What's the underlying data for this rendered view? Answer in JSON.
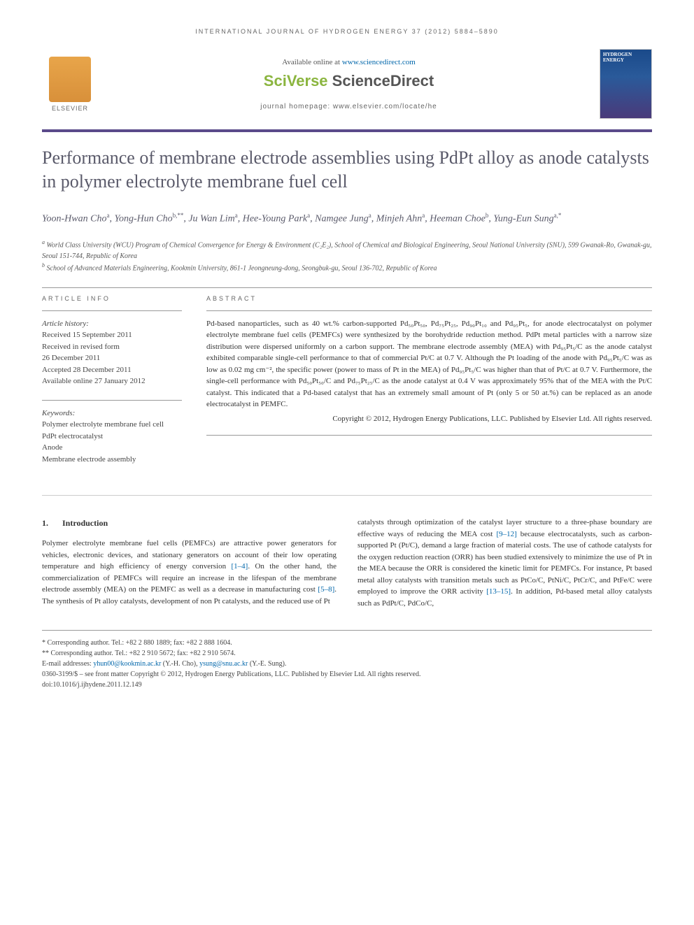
{
  "running_header": "INTERNATIONAL JOURNAL OF HYDROGEN ENERGY 37 (2012) 5884–5890",
  "header": {
    "available": "Available online at ",
    "available_url": "www.sciencedirect.com",
    "sciverse_1": "SciVerse ",
    "sciverse_2": "ScienceDirect",
    "homepage": "journal homepage: www.elsevier.com/locate/he",
    "elsevier": "ELSEVIER",
    "cover_title": "HYDROGEN ENERGY"
  },
  "title": "Performance of membrane electrode assemblies using PdPt alloy as anode catalysts in polymer electrolyte membrane fuel cell",
  "authors_html": "Yoon-Hwan Cho<sup>a</sup>, Yong-Hun Cho<sup>b,**</sup>, Ju Wan Lim<sup>a</sup>, Hee-Young Park<sup>a</sup>, Namgee Jung<sup>a</sup>, Minjeh Ahn<sup>a</sup>, Heeman Choe<sup>b</sup>, Yung-Eun Sung<sup>a,*</sup>",
  "affiliations": {
    "a": "World Class University (WCU) Program of Chemical Convergence for Energy & Environment (C₂E₂), School of Chemical and Biological Engineering, Seoul National University (SNU), 599 Gwanak-Ro, Gwanak-gu, Seoul 151-744, Republic of Korea",
    "b": "School of Advanced Materials Engineering, Kookmin University, 861-1 Jeongneung-dong, Seongbuk-gu, Seoul 136-702, Republic of Korea"
  },
  "article_info": {
    "header": "ARTICLE INFO",
    "history_title": "Article history:",
    "received": "Received 15 September 2011",
    "revised": "Received in revised form",
    "revised_date": "26 December 2011",
    "accepted": "Accepted 28 December 2011",
    "online": "Available online 27 January 2012",
    "keywords_title": "Keywords:",
    "keywords": [
      "Polymer electrolyte membrane fuel cell",
      "PdPt electrocatalyst",
      "Anode",
      "Membrane electrode assembly"
    ]
  },
  "abstract": {
    "header": "ABSTRACT",
    "text": "Pd-based nanoparticles, such as 40 wt.% carbon-supported Pd₅₀Pt₅₀, Pd₇₅Pt₂₅, Pd₉₀Pt₁₀ and Pd₉₅Pt₅, for anode electrocatalyst on polymer electrolyte membrane fuel cells (PEMFCs) were synthesized by the borohydride reduction method. PdPt metal particles with a narrow size distribution were dispersed uniformly on a carbon support. The membrane electrode assembly (MEA) with Pd₉₅Pt₅/C as the anode catalyst exhibited comparable single-cell performance to that of commercial Pt/C at 0.7 V. Although the Pt loading of the anode with Pd₉₅Pt₅/C was as low as 0.02 mg cm⁻², the specific power (power to mass of Pt in the MEA) of Pd₉₅Pt₅/C was higher than that of Pt/C at 0.7 V. Furthermore, the single-cell performance with Pd₅₀Pt₅₀/C and Pd₇₅Pt₂₅/C as the anode catalyst at 0.4 V was approximately 95% that of the MEA with the Pt/C catalyst. This indicated that a Pd-based catalyst that has an extremely small amount of Pt (only 5 or 50 at.%) can be replaced as an anode electrocatalyst in PEMFC.",
    "copyright": "Copyright © 2012, Hydrogen Energy Publications, LLC. Published by Elsevier Ltd. All rights reserved."
  },
  "body": {
    "section_num": "1.",
    "section_title": "Introduction",
    "col1": "Polymer electrolyte membrane fuel cells (PEMFCs) are attractive power generators for vehicles, electronic devices, and stationary generators on account of their low operating temperature and high efficiency of energy conversion [1–4]. On the other hand, the commercialization of PEMFCs will require an increase in the lifespan of the membrane electrode assembly (MEA) on the PEMFC as well as a decrease in manufacturing cost [5–8]. The synthesis of Pt alloy catalysts, development of non Pt catalysts, and the reduced use of Pt",
    "col2": "catalysts through optimization of the catalyst layer structure to a three-phase boundary are effective ways of reducing the MEA cost [9–12] because electrocatalysts, such as carbon-supported Pt (Pt/C), demand a large fraction of material costs. The use of cathode catalysts for the oxygen reduction reaction (ORR) has been studied extensively to minimize the use of Pt in the MEA because the ORR is considered the kinetic limit for PEMFCs. For instance, Pt based metal alloy catalysts with transition metals such as PtCo/C, PtNi/C, PtCr/C, and PtFe/C were employed to improve the ORR activity [13–15]. In addition, Pd-based metal alloy catalysts such as PdPt/C, PdCo/C,"
  },
  "footer": {
    "corr1": "* Corresponding author. Tel.: +82 2 880 1889; fax: +82 2 888 1604.",
    "corr2": "** Corresponding author. Tel.: +82 2 910 5672; fax: +82 2 910 5674.",
    "email_label": "E-mail addresses: ",
    "email1": "yhun00@kookmin.ac.kr",
    "email1_name": " (Y.-H. Cho), ",
    "email2": "ysung@snu.ac.kr",
    "email2_name": " (Y.-E. Sung).",
    "copyright": "0360-3199/$ – see front matter Copyright © 2012, Hydrogen Energy Publications, LLC. Published by Elsevier Ltd. All rights reserved.",
    "doi": "doi:10.1016/j.ijhydene.2011.12.149"
  },
  "colors": {
    "purple_bar": "#5a4a8a",
    "title_color": "#5a5a6a",
    "link_color": "#0066aa",
    "sciverse_green": "#8bb53f"
  }
}
